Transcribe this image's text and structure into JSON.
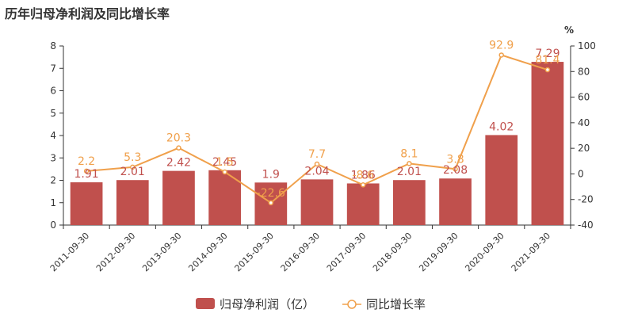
{
  "title": "历年归母净利润及同比增长率",
  "chart_data": {
    "type": "bar",
    "categories": [
      "2011-09-30",
      "2012-09-30",
      "2013-09-30",
      "2014-09-30",
      "2015-09-30",
      "2016-09-30",
      "2017-09-30",
      "2018-09-30",
      "2019-09-30",
      "2020-09-30",
      "2021-09-30"
    ],
    "series": [
      {
        "name": "归母净利润（亿）",
        "type": "bar",
        "axis": "left",
        "color": "#c0504d",
        "values": [
          1.91,
          2.01,
          2.42,
          2.45,
          1.9,
          2.04,
          1.86,
          2.01,
          2.08,
          4.02,
          7.29
        ]
      },
      {
        "name": "同比增长率",
        "type": "line",
        "axis": "right",
        "color": "#f0a04b",
        "values": [
          2.2,
          5.3,
          20.3,
          1.5,
          -22.6,
          7.7,
          -8.6,
          8.1,
          3.8,
          92.9,
          81.4
        ]
      }
    ],
    "y_left": {
      "min": 0,
      "max": 8,
      "ticks": [
        0,
        1,
        2,
        3,
        4,
        5,
        6,
        7,
        8
      ]
    },
    "y_right": {
      "min": -40,
      "max": 100,
      "ticks": [
        -40,
        -20,
        0,
        20,
        40,
        60,
        80,
        100
      ],
      "unit": "%"
    },
    "legend_position": "bottom-center"
  }
}
